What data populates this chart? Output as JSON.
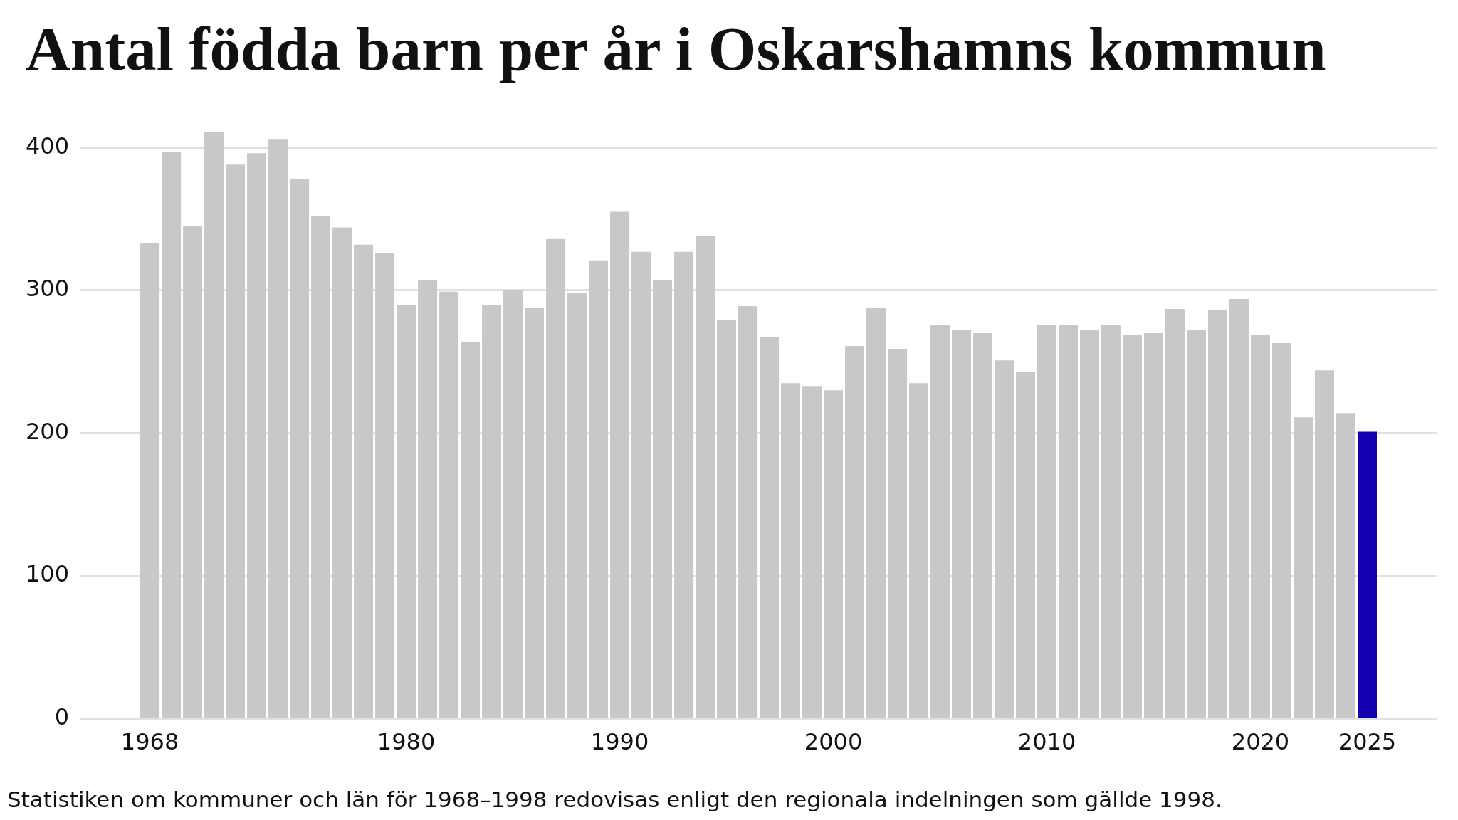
{
  "chart_data": {
    "type": "bar",
    "title": "Antal födda barn per år i Oskarshamns kommun",
    "x": [
      1968,
      1969,
      1970,
      1971,
      1972,
      1973,
      1974,
      1975,
      1976,
      1977,
      1978,
      1979,
      1980,
      1981,
      1982,
      1983,
      1984,
      1985,
      1986,
      1987,
      1988,
      1989,
      1990,
      1991,
      1992,
      1993,
      1994,
      1995,
      1996,
      1997,
      1998,
      1999,
      2000,
      2001,
      2002,
      2003,
      2004,
      2005,
      2006,
      2007,
      2008,
      2009,
      2010,
      2011,
      2012,
      2013,
      2014,
      2015,
      2016,
      2017,
      2018,
      2019,
      2020,
      2021,
      2022,
      2023,
      2024,
      2025
    ],
    "values": [
      333,
      397,
      345,
      411,
      388,
      396,
      406,
      378,
      352,
      344,
      332,
      326,
      290,
      307,
      299,
      264,
      290,
      300,
      288,
      336,
      298,
      321,
      355,
      327,
      307,
      327,
      338,
      279,
      289,
      267,
      235,
      233,
      230,
      261,
      288,
      259,
      235,
      276,
      272,
      270,
      251,
      243,
      276,
      276,
      272,
      276,
      269,
      270,
      287,
      272,
      286,
      294,
      269,
      263,
      211,
      244,
      214,
      201
    ],
    "colors": [
      "#c8c8c8",
      "#c8c8c8",
      "#c8c8c8",
      "#c8c8c8",
      "#c8c8c8",
      "#c8c8c8",
      "#c8c8c8",
      "#c8c8c8",
      "#c8c8c8",
      "#c8c8c8",
      "#c8c8c8",
      "#c8c8c8",
      "#c8c8c8",
      "#c8c8c8",
      "#c8c8c8",
      "#c8c8c8",
      "#c8c8c8",
      "#c8c8c8",
      "#c8c8c8",
      "#c8c8c8",
      "#c8c8c8",
      "#c8c8c8",
      "#c8c8c8",
      "#c8c8c8",
      "#c8c8c8",
      "#c8c8c8",
      "#c8c8c8",
      "#c8c8c8",
      "#c8c8c8",
      "#c8c8c8",
      "#c8c8c8",
      "#c8c8c8",
      "#c8c8c8",
      "#c8c8c8",
      "#c8c8c8",
      "#c8c8c8",
      "#c8c8c8",
      "#c8c8c8",
      "#c8c8c8",
      "#c8c8c8",
      "#c8c8c8",
      "#c8c8c8",
      "#c8c8c8",
      "#c8c8c8",
      "#c8c8c8",
      "#c8c8c8",
      "#c8c8c8",
      "#c8c8c8",
      "#c8c8c8",
      "#c8c8c8",
      "#c8c8c8",
      "#c8c8c8",
      "#c8c8c8",
      "#c8c8c8",
      "#c8c8c8",
      "#c8c8c8",
      "#c8c8c8",
      "#1400b0"
    ],
    "xlim": [
      1964.75,
      2028.25
    ],
    "xticks": [
      1968,
      1980,
      1990,
      2000,
      2010,
      2020,
      2025
    ],
    "ylim": [
      0,
      411
    ],
    "yticks": [
      0,
      100,
      200,
      300,
      400
    ],
    "grid": "y",
    "annotations": [
      "Statistiken om kommuner och län för 1968–1998 redovisas enligt den regionala indelningen som gällde 1998."
    ]
  }
}
